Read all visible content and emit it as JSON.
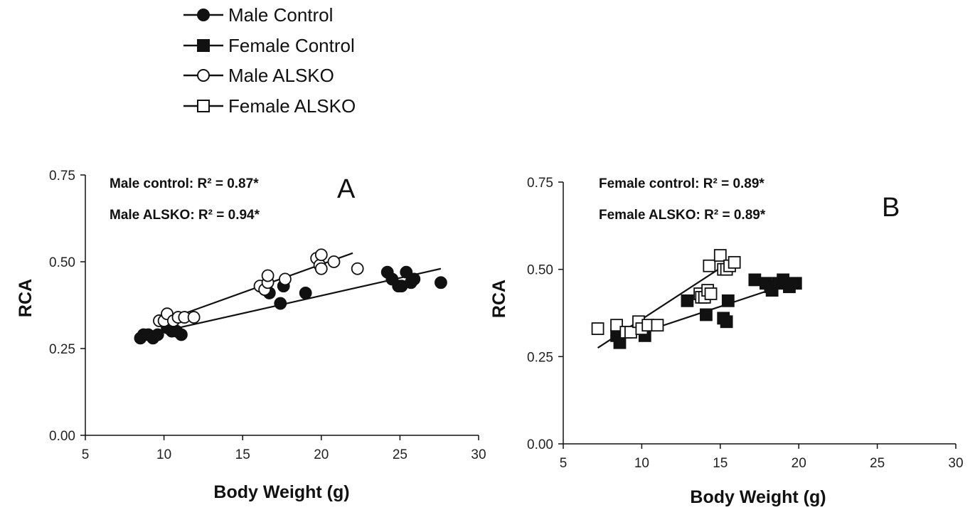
{
  "legend": [
    {
      "label": "Male Control",
      "marker": "circle",
      "fill": "#111111"
    },
    {
      "label": "Female Control",
      "marker": "square",
      "fill": "#111111"
    },
    {
      "label": "Male ALSKO",
      "marker": "circle",
      "fill": "#ffffff"
    },
    {
      "label": "Female ALSKO",
      "marker": "square",
      "fill": "#ffffff"
    }
  ],
  "chart_data": [
    {
      "type": "scatter",
      "panel_label": "A",
      "annotations": [
        "Male control: R² = 0.87*",
        "Male ALSKO: R² = 0.94*"
      ],
      "xlabel": "Body Weight (g)",
      "ylabel": "RCA",
      "xlim": [
        5,
        30
      ],
      "ylim": [
        0,
        0.75
      ],
      "x_ticks": [
        "5",
        "10",
        "15",
        "20",
        "25",
        "30"
      ],
      "y_ticks": [
        "0.00",
        "0.25",
        "0.50",
        "0.75"
      ],
      "grid": false,
      "series": [
        {
          "name": "Male Control",
          "marker": "circle",
          "fill": "#111111",
          "points": [
            [
              8.5,
              0.28
            ],
            [
              8.7,
              0.29
            ],
            [
              9.0,
              0.29
            ],
            [
              9.3,
              0.28
            ],
            [
              9.6,
              0.29
            ],
            [
              10.2,
              0.31
            ],
            [
              10.5,
              0.3
            ],
            [
              10.8,
              0.3
            ],
            [
              11.1,
              0.29
            ],
            [
              16.7,
              0.41
            ],
            [
              17.4,
              0.38
            ],
            [
              17.6,
              0.43
            ],
            [
              19.0,
              0.41
            ],
            [
              24.2,
              0.47
            ],
            [
              24.5,
              0.45
            ],
            [
              24.9,
              0.43
            ],
            [
              25.1,
              0.43
            ],
            [
              25.4,
              0.47
            ],
            [
              25.7,
              0.44
            ],
            [
              25.9,
              0.45
            ],
            [
              27.6,
              0.44
            ]
          ],
          "fit": [
            [
              8.5,
              0.285
            ],
            [
              27.6,
              0.48
            ]
          ]
        },
        {
          "name": "Male ALSKO",
          "marker": "circle",
          "fill": "#ffffff",
          "points": [
            [
              9.7,
              0.33
            ],
            [
              10.0,
              0.33
            ],
            [
              10.2,
              0.35
            ],
            [
              10.6,
              0.33
            ],
            [
              10.9,
              0.34
            ],
            [
              11.3,
              0.34
            ],
            [
              11.9,
              0.34
            ],
            [
              16.1,
              0.43
            ],
            [
              16.4,
              0.42
            ],
            [
              16.6,
              0.44
            ],
            [
              16.6,
              0.46
            ],
            [
              17.7,
              0.45
            ],
            [
              19.7,
              0.51
            ],
            [
              19.9,
              0.49
            ],
            [
              20.0,
              0.52
            ],
            [
              20.0,
              0.48
            ],
            [
              20.8,
              0.5
            ],
            [
              22.3,
              0.48
            ]
          ],
          "fit": [
            [
              9.7,
              0.325
            ],
            [
              22.0,
              0.525
            ]
          ]
        }
      ]
    },
    {
      "type": "scatter",
      "panel_label": "B",
      "annotations": [
        "Female control: R² = 0.89*",
        "Female ALSKO: R² = 0.89*"
      ],
      "xlabel": "Body Weight (g)",
      "ylabel": "RCA",
      "xlim": [
        5,
        30
      ],
      "ylim": [
        0,
        0.75
      ],
      "x_ticks": [
        "5",
        "10",
        "15",
        "20",
        "25",
        "30"
      ],
      "y_ticks": [
        "0.00",
        "0.25",
        "0.50",
        "0.75"
      ],
      "grid": false,
      "series": [
        {
          "name": "Female Control",
          "marker": "square",
          "fill": "#111111",
          "points": [
            [
              8.4,
              0.31
            ],
            [
              8.6,
              0.29
            ],
            [
              10.2,
              0.31
            ],
            [
              12.9,
              0.41
            ],
            [
              14.1,
              0.37
            ],
            [
              15.2,
              0.36
            ],
            [
              15.4,
              0.35
            ],
            [
              15.5,
              0.41
            ],
            [
              17.2,
              0.47
            ],
            [
              17.9,
              0.46
            ],
            [
              18.2,
              0.45
            ],
            [
              18.3,
              0.44
            ],
            [
              18.7,
              0.46
            ],
            [
              19.0,
              0.47
            ],
            [
              19.4,
              0.45
            ],
            [
              19.8,
              0.46
            ]
          ],
          "fit": [
            [
              8.4,
              0.295
            ],
            [
              19.8,
              0.465
            ]
          ]
        },
        {
          "name": "Female ALSKO",
          "marker": "square",
          "fill": "#ffffff",
          "points": [
            [
              7.2,
              0.33
            ],
            [
              8.4,
              0.34
            ],
            [
              9.0,
              0.32
            ],
            [
              9.3,
              0.32
            ],
            [
              9.8,
              0.35
            ],
            [
              10.0,
              0.33
            ],
            [
              10.4,
              0.34
            ],
            [
              11.0,
              0.34
            ],
            [
              13.7,
              0.43
            ],
            [
              13.8,
              0.42
            ],
            [
              14.0,
              0.42
            ],
            [
              14.2,
              0.44
            ],
            [
              14.3,
              0.51
            ],
            [
              14.4,
              0.43
            ],
            [
              15.0,
              0.54
            ],
            [
              15.2,
              0.5
            ],
            [
              15.4,
              0.5
            ],
            [
              15.6,
              0.51
            ],
            [
              15.9,
              0.52
            ]
          ],
          "fit": [
            [
              7.2,
              0.275
            ],
            [
              15.9,
              0.53
            ]
          ]
        }
      ]
    }
  ]
}
